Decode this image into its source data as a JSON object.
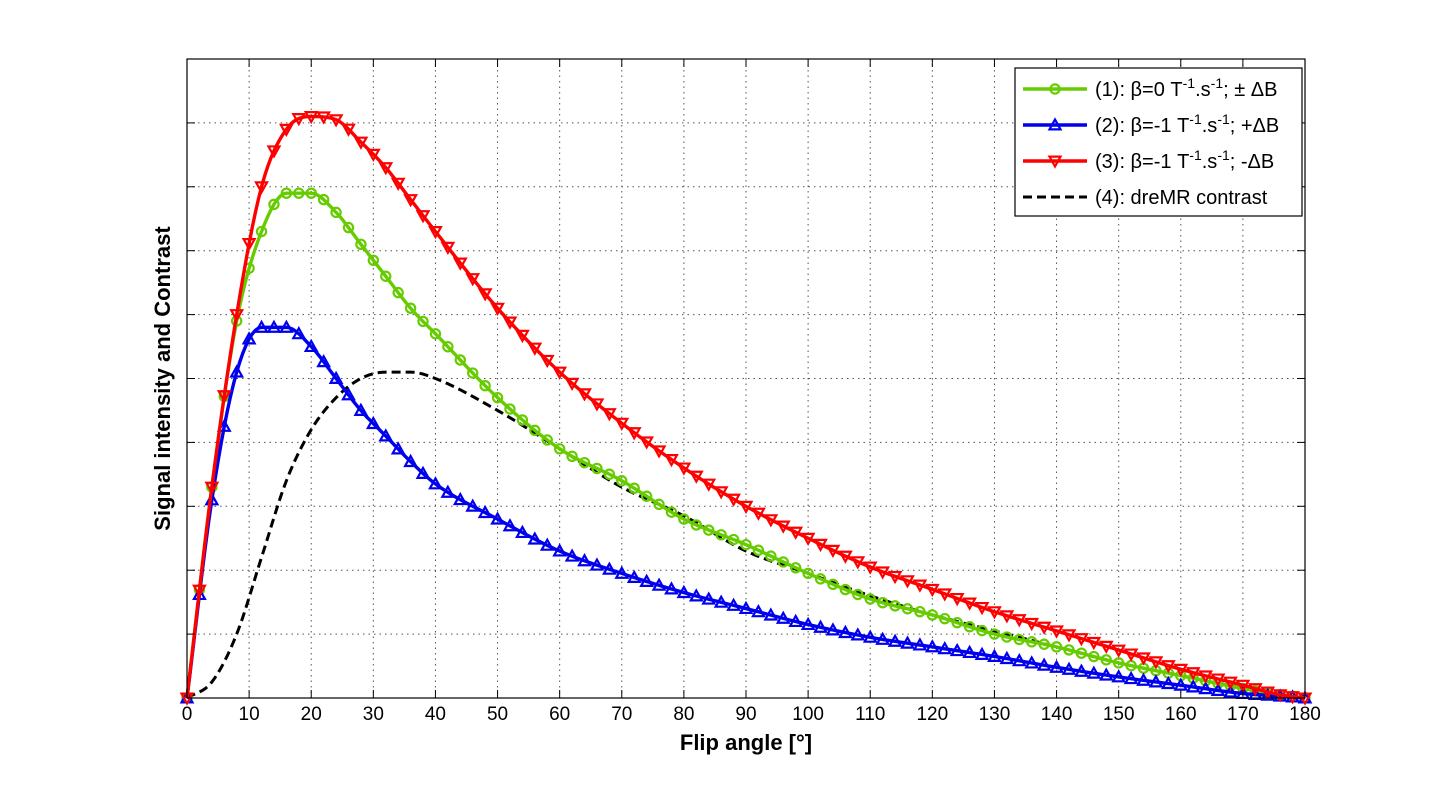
{
  "chart_data": {
    "type": "line",
    "title": "",
    "xlabel": "Flip angle [°]",
    "ylabel": "Signal intensity and Contrast",
    "xlim": [
      0,
      180
    ],
    "ylim": [
      0,
      10
    ],
    "x_ticks": [
      0,
      10,
      20,
      30,
      40,
      50,
      60,
      70,
      80,
      90,
      100,
      110,
      120,
      130,
      140,
      150,
      160,
      170,
      180
    ],
    "y_ticks": [
      0,
      1,
      2,
      3,
      4,
      5,
      6,
      7,
      8,
      9,
      10
    ],
    "y_tick_labels_shown": false,
    "grid": true,
    "legend_position": "top-right",
    "x": [
      0,
      4,
      8,
      12,
      16,
      20,
      24,
      28,
      32,
      36,
      40,
      50,
      60,
      70,
      80,
      90,
      100,
      110,
      120,
      130,
      140,
      150,
      160,
      170,
      176,
      180
    ],
    "series": [
      {
        "name": "(1): β=0 T⁻¹.s⁻¹; ± ΔB",
        "legend": {
          "pre": "(1): β=0 T",
          "sup1": "-1",
          "mid": ".s",
          "sup2": "-1",
          "post": "; ± ΔB"
        },
        "color": "#66cc00",
        "marker": "circle",
        "line_style": "solid",
        "values": [
          0,
          3.3,
          5.9,
          7.3,
          7.9,
          7.9,
          7.6,
          7.1,
          6.6,
          6.1,
          5.7,
          4.7,
          3.9,
          3.4,
          2.8,
          2.4,
          1.95,
          1.55,
          1.3,
          1.0,
          0.8,
          0.55,
          0.35,
          0.15,
          0.05,
          0
        ]
      },
      {
        "name": "(2): β=-1 T⁻¹.s⁻¹; +ΔB",
        "legend": {
          "pre": "(2): β=-1 T",
          "sup1": "-1",
          "mid": ".s",
          "sup2": "-1",
          "post": "; +ΔB"
        },
        "color": "#0000ee",
        "marker": "triangle-up",
        "line_style": "solid",
        "values": [
          0,
          3.1,
          5.1,
          5.8,
          5.8,
          5.5,
          5.0,
          4.5,
          4.1,
          3.7,
          3.35,
          2.8,
          2.3,
          1.95,
          1.65,
          1.4,
          1.15,
          0.95,
          0.8,
          0.65,
          0.48,
          0.33,
          0.2,
          0.07,
          0.03,
          0
        ]
      },
      {
        "name": "(3): β=-1 T⁻¹.s⁻¹; -ΔB",
        "legend": {
          "pre": "(3): β=-1 T",
          "sup1": "-1",
          "mid": ".s",
          "sup2": "-1",
          "post": "; -ΔB"
        },
        "color": "#ff0000",
        "marker": "triangle-down",
        "line_style": "solid",
        "values": [
          0,
          3.3,
          6.0,
          8.0,
          8.9,
          9.1,
          9.05,
          8.7,
          8.3,
          7.8,
          7.3,
          6.1,
          5.1,
          4.3,
          3.6,
          3.0,
          2.5,
          2.05,
          1.7,
          1.35,
          1.05,
          0.75,
          0.45,
          0.2,
          0.05,
          0
        ]
      },
      {
        "name": "(4): dreMR contrast",
        "legend": {
          "pre": "(4): dreMR contrast",
          "sup1": "",
          "mid": "",
          "sup2": "",
          "post": ""
        },
        "color": "#000000",
        "marker": "none",
        "line_style": "dashed",
        "values": [
          0,
          0.25,
          1.0,
          2.2,
          3.4,
          4.2,
          4.7,
          5.0,
          5.1,
          5.1,
          5.0,
          4.5,
          3.9,
          3.3,
          2.85,
          2.3,
          1.95,
          1.6,
          1.3,
          1.05,
          0.8,
          0.55,
          0.35,
          0.15,
          0.05,
          0
        ]
      }
    ]
  }
}
